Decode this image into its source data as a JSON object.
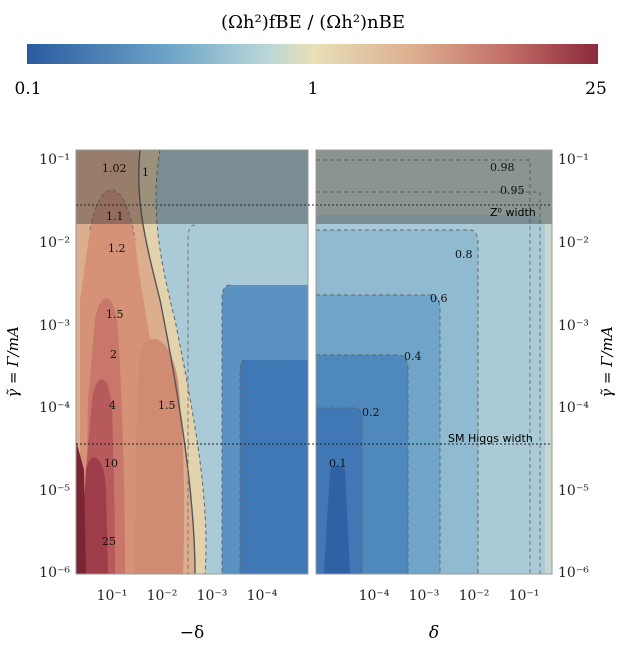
{
  "chart_data": {
    "type": "heatmap",
    "title": "(Ωh²)fBE / (Ωh²)nBE",
    "colorbar": {
      "labels": [
        "0.1",
        "1",
        "25"
      ],
      "scale": "log",
      "colors": [
        "#2a5a9e",
        "#9dc4d6",
        "#e8e0b8",
        "#d99a7c",
        "#8b2a3c"
      ]
    },
    "ylabel": "γ̃ = Γ/mA",
    "yticks": [
      "10⁻¹",
      "10⁻²",
      "10⁻³",
      "10⁻⁴",
      "10⁻⁵",
      "10⁻⁶"
    ],
    "ylim": [
      1e-06,
      0.1
    ],
    "yscale": "log",
    "panels": [
      {
        "name": "left",
        "xlabel": "−δ",
        "xticks": [
          "10⁻¹",
          "10⁻²",
          "10⁻³",
          "10⁻⁴"
        ],
        "xscale": "log (reversed)",
        "contour_labels": [
          "1.02",
          "1",
          "1.1",
          "1.2",
          "1.5",
          "2",
          "4",
          "1.5",
          "10",
          "25"
        ]
      },
      {
        "name": "right",
        "xlabel": "δ",
        "xticks": [
          "10⁻⁴",
          "10⁻³",
          "10⁻²",
          "10⁻¹"
        ],
        "xscale": "log",
        "contour_labels": [
          "0.98",
          "0.95",
          "0.8",
          "0.6",
          "0.4",
          "0.2",
          "0.1"
        ]
      }
    ],
    "reference_lines": [
      {
        "label": "Z⁰ width",
        "y": 0.028
      },
      {
        "label": "SM Higgs width",
        "y": 3.4e-05
      }
    ],
    "shaded_band": {
      "from_y": 0.016,
      "to_y": 0.1
    }
  }
}
